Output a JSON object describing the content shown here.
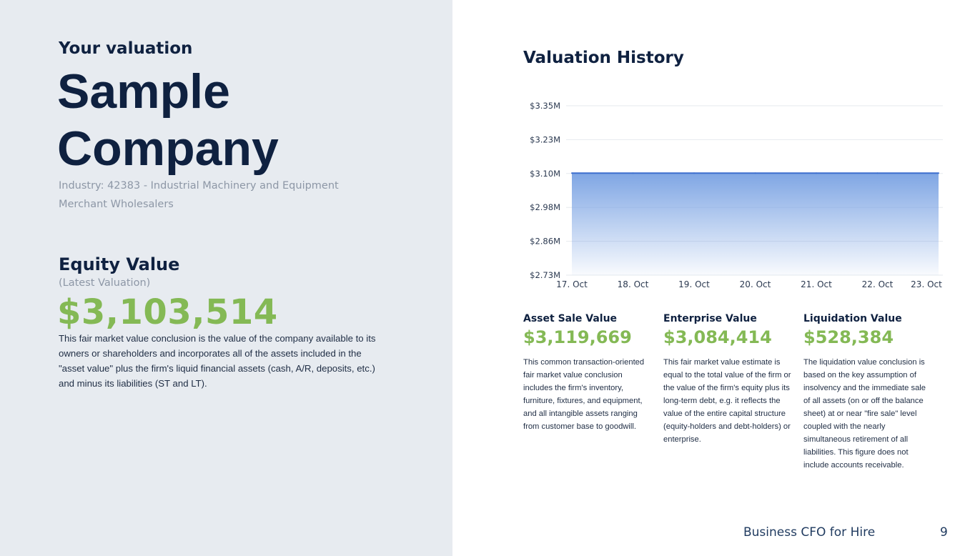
{
  "header": {
    "eyebrow": "Your valuation",
    "company_name": "Sample Company",
    "industry": "Industry: 42383 - Industrial Machinery and Equipment Merchant Wholesalers"
  },
  "equity": {
    "heading": "Equity Value",
    "subheading": "(Latest Valuation)",
    "value": "$3,103,514",
    "description": "This fair market value conclusion is the value of the company available to its owners or shareholders and incorporates all of the assets included in the \"asset value\" plus the firm's liquid financial assets (cash, A/R, deposits, etc.) and minus its liabilities (ST and LT)."
  },
  "chart_title": "Valuation History",
  "chart_data": {
    "type": "area",
    "title": "",
    "xlabel": "",
    "ylabel": "",
    "x": [
      "17. Oct",
      "18. Oct",
      "19. Oct",
      "20. Oct",
      "21. Oct",
      "22. Oct",
      "23. Oct"
    ],
    "series": [
      {
        "values": [
          3.103514,
          3.103514,
          3.103514,
          3.103514,
          3.103514,
          3.103514,
          3.103514
        ]
      }
    ],
    "y_ticks": [
      "$2.73M",
      "$2.86M",
      "$2.98M",
      "$3.10M",
      "$3.23M",
      "$3.35M"
    ],
    "ylim": [
      2.73,
      3.35
    ],
    "grid": true,
    "legend": "none",
    "line_color": "#3d6fce",
    "fill_color": "#7fa6e4"
  },
  "cards": [
    {
      "title": "Asset Sale Value",
      "value": "$3,119,669",
      "description": "This common transaction-oriented fair market value conclusion includes the firm's inventory, furniture, fixtures, and equipment, and all intangible assets ranging from customer base to goodwill."
    },
    {
      "title": "Enterprise Value",
      "value": "$3,084,414",
      "description": "This fair market value estimate is equal to the total value of the firm or the value of the firm's equity plus its long-term debt, e.g. it reflects the value of the entire capital structure (equity-holders and debt-holders) or enterprise."
    },
    {
      "title": "Liquidation Value",
      "value": "$528,384",
      "description": "The liquidation value conclusion is based on the key assumption of insolvency and the immediate sale of all assets (on or off the balance sheet) at or near \"fire sale\" level coupled with the nearly simultaneous retirement of all liabilities. This figure does not include accounts receivable."
    }
  ],
  "footer": {
    "brand": "Business CFO for Hire",
    "page_number": "9"
  },
  "colors": {
    "navy": "#0f2140",
    "accent_green": "#84b955",
    "muted_gray": "#8d97a6",
    "panel_bg": "#e7ebf0"
  }
}
